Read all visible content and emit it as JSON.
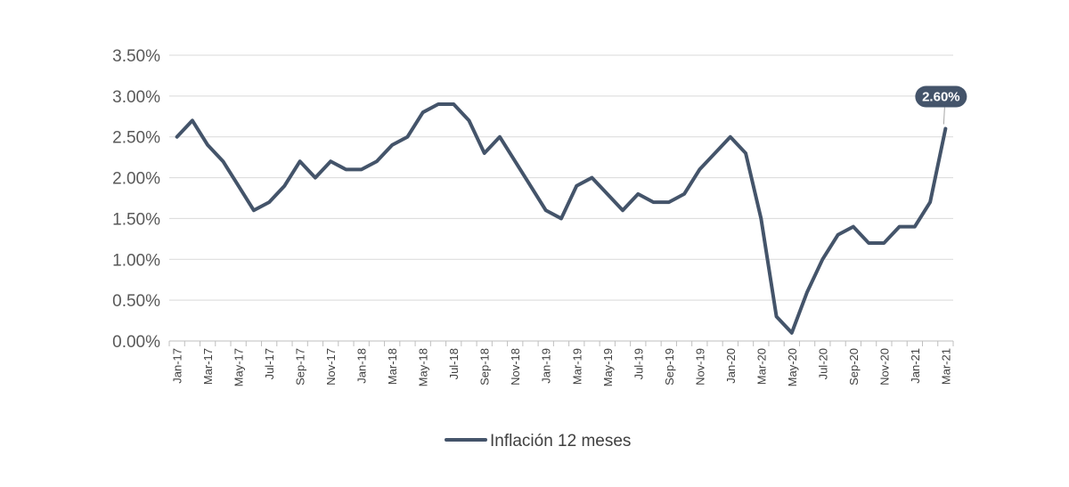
{
  "chart_data": {
    "type": "line",
    "title": "",
    "xlabel": "",
    "ylabel": "",
    "ylim": [
      0,
      3.5
    ],
    "y_ticks": [
      "0.00%",
      "0.50%",
      "1.00%",
      "1.50%",
      "2.00%",
      "2.50%",
      "3.00%",
      "3.50%"
    ],
    "grid": true,
    "legend_position": "bottom",
    "categories": [
      "Jan-17",
      "Feb-17",
      "Mar-17",
      "Apr-17",
      "May-17",
      "Jun-17",
      "Jul-17",
      "Aug-17",
      "Sep-17",
      "Oct-17",
      "Nov-17",
      "Dec-17",
      "Jan-18",
      "Feb-18",
      "Mar-18",
      "Apr-18",
      "May-18",
      "Jun-18",
      "Jul-18",
      "Aug-18",
      "Sep-18",
      "Oct-18",
      "Nov-18",
      "Dec-18",
      "Jan-19",
      "Feb-19",
      "Mar-19",
      "Apr-19",
      "May-19",
      "Jun-19",
      "Jul-19",
      "Aug-19",
      "Sep-19",
      "Oct-19",
      "Nov-19",
      "Dec-19",
      "Jan-20",
      "Feb-20",
      "Mar-20",
      "Apr-20",
      "May-20",
      "Jun-20",
      "Jul-20",
      "Aug-20",
      "Sep-20",
      "Oct-20",
      "Nov-20",
      "Dec-20",
      "Jan-21",
      "Feb-21",
      "Mar-21"
    ],
    "x_tick_labels": [
      "Jan-17",
      "Mar-17",
      "May-17",
      "Jul-17",
      "Sep-17",
      "Nov-17",
      "Jan-18",
      "Mar-18",
      "May-18",
      "Jul-18",
      "Sep-18",
      "Nov-18",
      "Jan-19",
      "Mar-19",
      "May-19",
      "Jul-19",
      "Sep-19",
      "Nov-19",
      "Jan-20",
      "Mar-20",
      "May-20",
      "Jul-20",
      "Sep-20",
      "Nov-20",
      "Jan-21",
      "Mar-21"
    ],
    "series": [
      {
        "name": "Inflación 12 meses",
        "color": "#44546a",
        "values": [
          2.5,
          2.7,
          2.4,
          2.2,
          1.9,
          1.6,
          1.7,
          1.9,
          2.2,
          2.0,
          2.2,
          2.1,
          2.1,
          2.2,
          2.4,
          2.5,
          2.8,
          2.9,
          2.9,
          2.7,
          2.3,
          2.5,
          2.2,
          1.9,
          1.6,
          1.5,
          1.9,
          2.0,
          1.8,
          1.6,
          1.8,
          1.7,
          1.7,
          1.8,
          2.1,
          2.3,
          2.5,
          2.3,
          1.5,
          0.3,
          0.1,
          0.6,
          1.0,
          1.3,
          1.4,
          1.2,
          1.2,
          1.4,
          1.4,
          1.7,
          2.6
        ]
      }
    ],
    "annotations": [
      {
        "category": "Mar-21",
        "value": 2.6,
        "text": "2.60%"
      }
    ]
  }
}
